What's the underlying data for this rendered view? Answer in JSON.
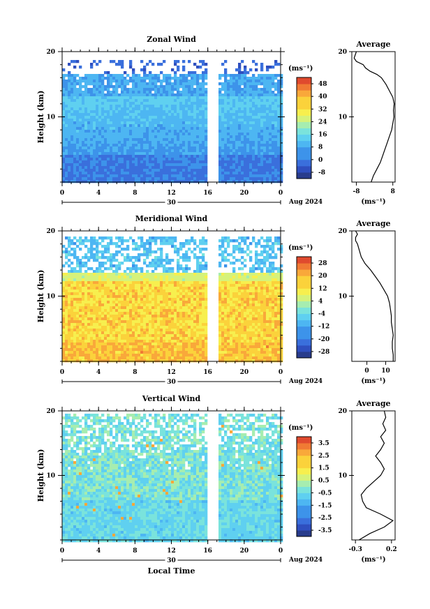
{
  "chart_data": [
    {
      "type": "heatmap",
      "title": "Zonal Wind",
      "ylabel": "Height (km)",
      "ylim": [
        0,
        20
      ],
      "yticks": [
        20,
        10
      ],
      "xticks": [
        "0",
        "4",
        "8",
        "12",
        "16",
        "20",
        "0"
      ],
      "date_label": "30",
      "date_suffix": "Aug 2024",
      "colorbar": {
        "unit": "(ms⁻¹)",
        "ticks": [
          "48",
          "40",
          "32",
          "24",
          "16",
          "8",
          "0",
          "-8"
        ],
        "range": [
          -12,
          52
        ]
      },
      "colors": {
        "low": "#2b3a9e",
        "mid": "#3aa0e6",
        "high": "#e03a2a"
      },
      "average": {
        "title": "Average",
        "xticks": [
          "-8",
          "8"
        ],
        "xlim": [
          -10,
          9
        ],
        "unit": "(ms⁻¹)",
        "profile": [
          [
            -1.5,
            0
          ],
          [
            -0.5,
            1
          ],
          [
            1,
            2
          ],
          [
            2.5,
            3
          ],
          [
            3.5,
            4
          ],
          [
            4.5,
            5
          ],
          [
            5.5,
            6
          ],
          [
            6.5,
            7
          ],
          [
            7.5,
            8
          ],
          [
            8,
            9
          ],
          [
            8.5,
            10
          ],
          [
            8.3,
            11
          ],
          [
            8.6,
            12
          ],
          [
            8,
            13
          ],
          [
            6.5,
            14
          ],
          [
            5,
            15
          ],
          [
            3,
            16
          ],
          [
            1,
            16.5
          ],
          [
            -2,
            17
          ],
          [
            -4,
            17.5
          ],
          [
            -5,
            18
          ],
          [
            -8,
            18.5
          ],
          [
            -9,
            19
          ],
          [
            -8,
            20
          ]
        ]
      }
    },
    {
      "type": "heatmap",
      "title": "Meridional Wind",
      "ylabel": "Height (km)",
      "ylim": [
        0,
        20
      ],
      "yticks": [
        20,
        10
      ],
      "xticks": [
        "0",
        "4",
        "8",
        "12",
        "16",
        "20",
        "0"
      ],
      "date_label": "30",
      "date_suffix": "Aug 2024",
      "colorbar": {
        "unit": "(ms⁻¹)",
        "ticks": [
          "28",
          "20",
          "12",
          "4",
          "-4",
          "-12",
          "-20",
          "-28"
        ],
        "range": [
          -32,
          32
        ]
      },
      "average": {
        "title": "Average",
        "xticks": [
          "0",
          "10"
        ],
        "xlim": [
          -8,
          15
        ],
        "unit": "(ms⁻¹)",
        "profile": [
          [
            14,
            0
          ],
          [
            14,
            1
          ],
          [
            13.5,
            2
          ],
          [
            13.5,
            3
          ],
          [
            14,
            4
          ],
          [
            13.5,
            5
          ],
          [
            13,
            6
          ],
          [
            13,
            7
          ],
          [
            12.5,
            8
          ],
          [
            12,
            9
          ],
          [
            11,
            10
          ],
          [
            9,
            11
          ],
          [
            7,
            12
          ],
          [
            4.5,
            13
          ],
          [
            2,
            14
          ],
          [
            -1,
            15
          ],
          [
            -3,
            16
          ],
          [
            -4,
            17
          ],
          [
            -5,
            18
          ],
          [
            -6,
            18.5
          ],
          [
            -6,
            19
          ],
          [
            -5,
            19.5
          ],
          [
            -6,
            20
          ]
        ]
      }
    },
    {
      "type": "heatmap",
      "title": "Vertical Wind",
      "xlabel": "Local Time",
      "ylabel": "Height (km)",
      "ylim": [
        0,
        20
      ],
      "yticks": [
        20,
        10
      ],
      "xticks": [
        "0",
        "4",
        "8",
        "12",
        "16",
        "20",
        "0"
      ],
      "date_label": "30",
      "date_suffix": "Aug 2024",
      "colorbar": {
        "unit": "(ms⁻¹)",
        "ticks": [
          "3.5",
          "2.5",
          "1.5",
          "0.5",
          "-0.5",
          "-1.5",
          "-2.5",
          "-3.5"
        ],
        "range": [
          -4,
          4
        ]
      },
      "average": {
        "title": "Average",
        "xticks": [
          "-0.3",
          "0.2"
        ],
        "xlim": [
          -0.35,
          0.25
        ],
        "unit": "(ms⁻¹)",
        "profile": [
          [
            -0.25,
            0
          ],
          [
            -0.1,
            1
          ],
          [
            0.1,
            2
          ],
          [
            0.22,
            3
          ],
          [
            0.05,
            4
          ],
          [
            -0.15,
            5
          ],
          [
            -0.2,
            6
          ],
          [
            -0.22,
            7
          ],
          [
            -0.15,
            8
          ],
          [
            -0.05,
            9
          ],
          [
            0.05,
            10
          ],
          [
            0.1,
            11
          ],
          [
            0.05,
            12
          ],
          [
            -0.02,
            13
          ],
          [
            0.05,
            14
          ],
          [
            0.1,
            15
          ],
          [
            0.05,
            16
          ],
          [
            0.12,
            17
          ],
          [
            0.08,
            18
          ],
          [
            0.12,
            19
          ],
          [
            0.1,
            20
          ]
        ]
      }
    }
  ]
}
